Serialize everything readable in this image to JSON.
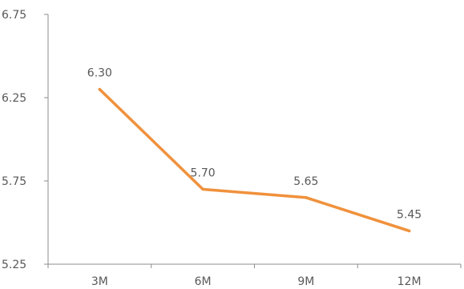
{
  "chart_data": {
    "type": "line",
    "categories": [
      "3M",
      "6M",
      "9M",
      "12M"
    ],
    "values": [
      6.3,
      5.7,
      5.65,
      5.45
    ],
    "value_labels": [
      "6.30",
      "5.70",
      "5.65",
      "5.45"
    ],
    "ylim": [
      5.25,
      6.75
    ],
    "yticks": [
      5.25,
      5.75,
      6.25,
      6.75
    ],
    "ytick_labels": [
      "5.25",
      "5.75",
      "6.25",
      "6.75"
    ],
    "line_color": "#F0913C",
    "axis_color": "#8C8C8C",
    "grid": false,
    "legend": "none"
  }
}
